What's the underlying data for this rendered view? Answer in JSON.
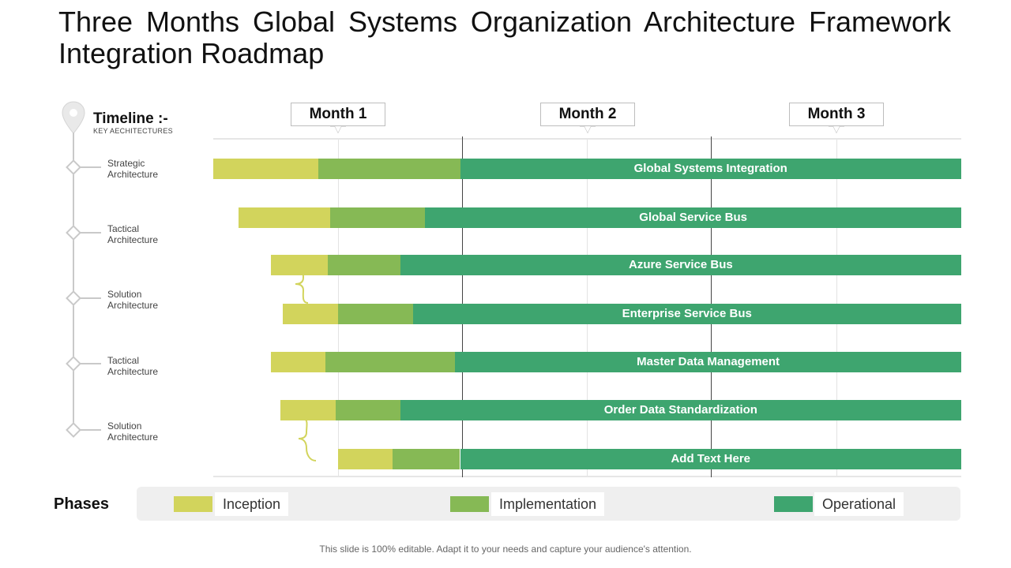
{
  "title": "Three Months Global Systems Organization Architecture Framework Integration Roadmap",
  "timeline": {
    "heading": "Timeline :-",
    "subheading": "KEY AECHITECTURES",
    "levels": [
      {
        "line1": "Strategic",
        "line2": "Architecture"
      },
      {
        "line1": "Tactical",
        "line2": "Architecture"
      },
      {
        "line1": "Solution",
        "line2": "Architecture"
      },
      {
        "line1": "Tactical",
        "line2": "Architecture"
      },
      {
        "line1": "Solution",
        "line2": "Architecture"
      }
    ]
  },
  "months": [
    "Month 1",
    "Month 2",
    "Month 3"
  ],
  "tasks": [
    {
      "name": "Global Systems Integration",
      "inception_start": 0.0,
      "implementation_start": 0.42,
      "operational_start": 0.99
    },
    {
      "name": "Global Service Bus",
      "inception_start": 0.1,
      "implementation_start": 0.47,
      "operational_start": 0.85
    },
    {
      "name": "Azure Service Bus",
      "inception_start": 0.23,
      "implementation_start": 0.46,
      "operational_start": 0.75
    },
    {
      "name": "Enterprise Service Bus",
      "inception_start": 0.28,
      "implementation_start": 0.5,
      "operational_start": 0.8
    },
    {
      "name": "Master Data Management",
      "inception_start": 0.23,
      "implementation_start": 0.45,
      "operational_start": 0.97
    },
    {
      "name": "Order Data Standardization",
      "inception_start": 0.27,
      "implementation_start": 0.49,
      "operational_start": 0.75
    },
    {
      "name": "Add Text Here",
      "inception_start": 0.5,
      "implementation_start": 0.72,
      "operational_start": 0.99
    }
  ],
  "phases": {
    "title": "Phases",
    "items": [
      {
        "label": "Inception",
        "color": "#d2d45c"
      },
      {
        "label": "Implementation",
        "color": "#86b955"
      },
      {
        "label": "Operational",
        "color": "#3ea56f"
      }
    ]
  },
  "footer": "This slide is 100% editable. Adapt it to your needs and capture your audience's attention."
}
